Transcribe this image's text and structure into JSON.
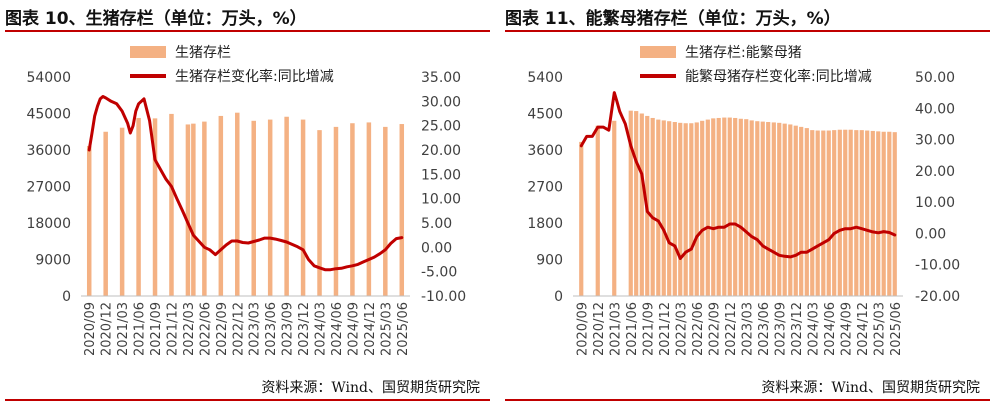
{
  "colors": {
    "bar": "#f4b183",
    "line": "#c00000",
    "text": "#404040",
    "axis": "#bfbfbf",
    "rule": "#c00000"
  },
  "x_labels": [
    "2020/09",
    "2020/12",
    "2021/03",
    "2021/06",
    "2021/09",
    "2021/12",
    "2022/03",
    "2022/06",
    "2022/09",
    "2022/12",
    "2023/03",
    "2023/06",
    "2023/09",
    "2023/12",
    "2024/03",
    "2024/06",
    "2024/09",
    "2024/12",
    "2025/03",
    "2025/06"
  ],
  "chart_data": [
    {
      "type": "bar+line",
      "title": "图表 10、生猪存栏（单位：万头，%）",
      "source": "资料来源：Wind、国贸期货研究院",
      "legend": [
        "生猪存栏",
        "生猪存栏变化率:同比增减"
      ],
      "left_axis": {
        "min": 0,
        "max": 54000,
        "ticks": [
          0,
          9000,
          18000,
          27000,
          36000,
          45000,
          54000
        ],
        "tick_labels": [
          "0",
          "9000",
          "18000",
          "27000",
          "36000",
          "45000",
          "54000"
        ]
      },
      "right_axis": {
        "min": -10,
        "max": 35,
        "ticks": [
          -10,
          -5,
          0,
          5,
          10,
          15,
          20,
          25,
          30,
          35
        ],
        "tick_labels": [
          "-10.00",
          "-5.00",
          "0.00",
          "5.00",
          "10.00",
          "15.00",
          "20.00",
          "25.00",
          "30.00",
          "35.00"
        ]
      },
      "bars_x": [
        0,
        1,
        2,
        3,
        4,
        5,
        6,
        6.33,
        7,
        8,
        9,
        10,
        11,
        12,
        13,
        14,
        15,
        16,
        17,
        18,
        19
      ],
      "bars_y": [
        37000,
        40500,
        41500,
        43900,
        43800,
        44900,
        42300,
        42500,
        43000,
        44400,
        45200,
        43200,
        43500,
        44200,
        43500,
        40900,
        41700,
        42600,
        42800,
        41700,
        42400
      ],
      "line_x": [
        0,
        0.17,
        0.33,
        0.5,
        0.67,
        0.83,
        1,
        1.33,
        1.67,
        2,
        2.33,
        2.5,
        2.67,
        2.83,
        3,
        3.33,
        3.67,
        4,
        4.33,
        4.67,
        5,
        5.33,
        5.67,
        6,
        6.33,
        7,
        7.33,
        7.67,
        8,
        8.33,
        8.67,
        9,
        9.33,
        9.67,
        10,
        10.33,
        10.67,
        11,
        11.33,
        11.67,
        12,
        12.33,
        12.67,
        13,
        13.33,
        13.67,
        14,
        14.33,
        14.67,
        15,
        15.33,
        15.67,
        16,
        16.33,
        16.67,
        17,
        17.33,
        17.67,
        18,
        18.33,
        18.67,
        19
      ],
      "line_y": [
        20,
        23.5,
        27,
        29,
        30.5,
        31,
        30.7,
        30,
        29.5,
        28,
        25.5,
        23.5,
        25,
        28,
        29.5,
        30.5,
        26,
        18,
        16,
        14,
        12.5,
        10,
        7.5,
        5,
        2.5,
        0,
        -0.5,
        -1.5,
        -0.5,
        0.5,
        1.3,
        1.3,
        1.0,
        0.9,
        1.2,
        1.5,
        1.9,
        1.9,
        1.7,
        1.4,
        1.1,
        0.6,
        0.1,
        -0.5,
        -2.5,
        -3.8,
        -4.2,
        -4.6,
        -4.6,
        -4.4,
        -4.3,
        -4.0,
        -3.8,
        -3.5,
        -3.0,
        -2.5,
        -2.0,
        -1.3,
        -0.5,
        0.8,
        1.8,
        2.0
      ]
    },
    {
      "type": "bar+line",
      "title": "图表 11、能繁母猪存栏（单位：万头，%）",
      "source": "资料来源：Wind、国贸期货研究院",
      "legend": [
        "生猪存栏:能繁母猪",
        "能繁母猪存栏变化率:同比增减"
      ],
      "left_axis": {
        "min": 0,
        "max": 5400,
        "ticks": [
          0,
          900,
          1800,
          2700,
          3600,
          4500,
          5400
        ],
        "tick_labels": [
          "0",
          "900",
          "1800",
          "2700",
          "3600",
          "4500",
          "5400"
        ]
      },
      "right_axis": {
        "min": -20,
        "max": 50,
        "ticks": [
          -20,
          -10,
          0,
          10,
          20,
          30,
          40,
          50
        ],
        "tick_labels": [
          "-20.00",
          "-10.00",
          "0.00",
          "10.00",
          "20.00",
          "30.00",
          "40.00",
          "50.00"
        ]
      },
      "bars_x": [
        0,
        1,
        2,
        3,
        3.33,
        3.67,
        4,
        4.33,
        4.67,
        5,
        5.33,
        5.67,
        6,
        6.33,
        6.67,
        7,
        7.33,
        7.67,
        8,
        8.33,
        8.67,
        9,
        9.33,
        9.67,
        10,
        10.33,
        10.67,
        11,
        11.33,
        11.67,
        12,
        12.33,
        12.67,
        13,
        13.33,
        13.67,
        14,
        14.33,
        14.67,
        15,
        15.33,
        15.67,
        16,
        16.33,
        16.67,
        17,
        17.33,
        17.67,
        18,
        18.33,
        18.67,
        19
      ],
      "bars_y": [
        3800,
        4200,
        4320,
        4570,
        4560,
        4500,
        4440,
        4390,
        4350,
        4330,
        4310,
        4290,
        4270,
        4260,
        4260,
        4280,
        4320,
        4350,
        4380,
        4390,
        4400,
        4400,
        4390,
        4370,
        4360,
        4330,
        4310,
        4300,
        4290,
        4280,
        4270,
        4250,
        4230,
        4200,
        4170,
        4140,
        4090,
        4080,
        4080,
        4080,
        4090,
        4100,
        4100,
        4100,
        4090,
        4090,
        4080,
        4070,
        4060,
        4050,
        4050,
        4040
      ],
      "line_x": [
        0,
        0.33,
        0.67,
        1,
        1.33,
        1.67,
        2,
        2.17,
        2.33,
        2.5,
        2.67,
        3,
        3.33,
        3.67,
        4,
        4.33,
        4.67,
        5,
        5.33,
        5.67,
        6,
        6.33,
        6.67,
        7,
        7.33,
        7.67,
        8,
        8.33,
        8.67,
        9,
        9.33,
        9.67,
        10,
        10.33,
        10.67,
        11,
        11.33,
        11.67,
        12,
        12.33,
        12.67,
        13,
        13.33,
        13.67,
        14,
        14.33,
        14.67,
        15,
        15.33,
        15.67,
        16,
        16.33,
        16.67,
        17,
        17.33,
        17.67,
        18,
        18.33,
        18.67,
        19
      ],
      "line_y": [
        28,
        31,
        31,
        34,
        34,
        33,
        45,
        42,
        39,
        37,
        35,
        28,
        23,
        19,
        7,
        5,
        4,
        1,
        -3,
        -4,
        -8,
        -6,
        -5,
        -1,
        1,
        2,
        1.5,
        2,
        2,
        3,
        3,
        2,
        0.5,
        -1,
        -2,
        -4,
        -5,
        -6,
        -7,
        -7.3,
        -7.5,
        -7,
        -6,
        -6,
        -5,
        -4,
        -3,
        -2,
        0,
        1,
        1.5,
        1.5,
        2,
        1.5,
        1,
        0.5,
        0.2,
        0.6,
        0.3,
        -0.5
      ]
    }
  ]
}
